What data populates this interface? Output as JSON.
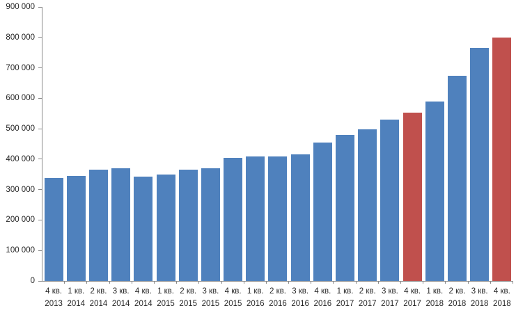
{
  "chart_data": {
    "type": "bar",
    "title": "",
    "xlabel": "",
    "ylabel": "",
    "grid": false,
    "legend": null,
    "ylim": [
      0,
      900000
    ],
    "ytick_step": 100000,
    "ytick_labels": [
      "0",
      "100 000",
      "200 000",
      "300 000",
      "400 000",
      "500 000",
      "600 000",
      "700 000",
      "800 000",
      "900 000"
    ],
    "categories": [
      {
        "quarter": "4 кв.",
        "year": "2013"
      },
      {
        "quarter": "1 кв.",
        "year": "2014"
      },
      {
        "quarter": "2 кв.",
        "year": "2014"
      },
      {
        "quarter": "3 кв.",
        "year": "2014"
      },
      {
        "quarter": "4 кв.",
        "year": "2014"
      },
      {
        "quarter": "1 кв.",
        "year": "2015"
      },
      {
        "quarter": "2 кв.",
        "year": "2015"
      },
      {
        "quarter": "3 кв.",
        "year": "2015"
      },
      {
        "quarter": "4 кв.",
        "year": "2015"
      },
      {
        "quarter": "1 кв.",
        "year": "2016"
      },
      {
        "quarter": "2 кв.",
        "year": "2016"
      },
      {
        "quarter": "3 кв.",
        "year": "2016"
      },
      {
        "quarter": "4 кв.",
        "year": "2016"
      },
      {
        "quarter": "1 кв.",
        "year": "2017"
      },
      {
        "quarter": "2 кв.",
        "year": "2017"
      },
      {
        "quarter": "3 кв.",
        "year": "2017"
      },
      {
        "quarter": "4 кв.",
        "year": "2017"
      },
      {
        "quarter": "1 кв.",
        "year": "2018"
      },
      {
        "quarter": "2 кв.",
        "year": "2018"
      },
      {
        "quarter": "3 кв.",
        "year": "2018"
      },
      {
        "quarter": "4 кв.",
        "year": "2018"
      }
    ],
    "values": [
      338000,
      345000,
      365000,
      371000,
      342000,
      350000,
      366000,
      371000,
      405000,
      410000,
      408000,
      416000,
      455000,
      479000,
      497000,
      530000,
      552000,
      589000,
      673000,
      765000,
      799000
    ],
    "highlight_indices": [
      16,
      20
    ],
    "colors": {
      "bar_default": "#4f81bd",
      "bar_highlight": "#c0504d",
      "axis": "#8a8a8a",
      "text": "#262626",
      "background": "#ffffff"
    }
  }
}
